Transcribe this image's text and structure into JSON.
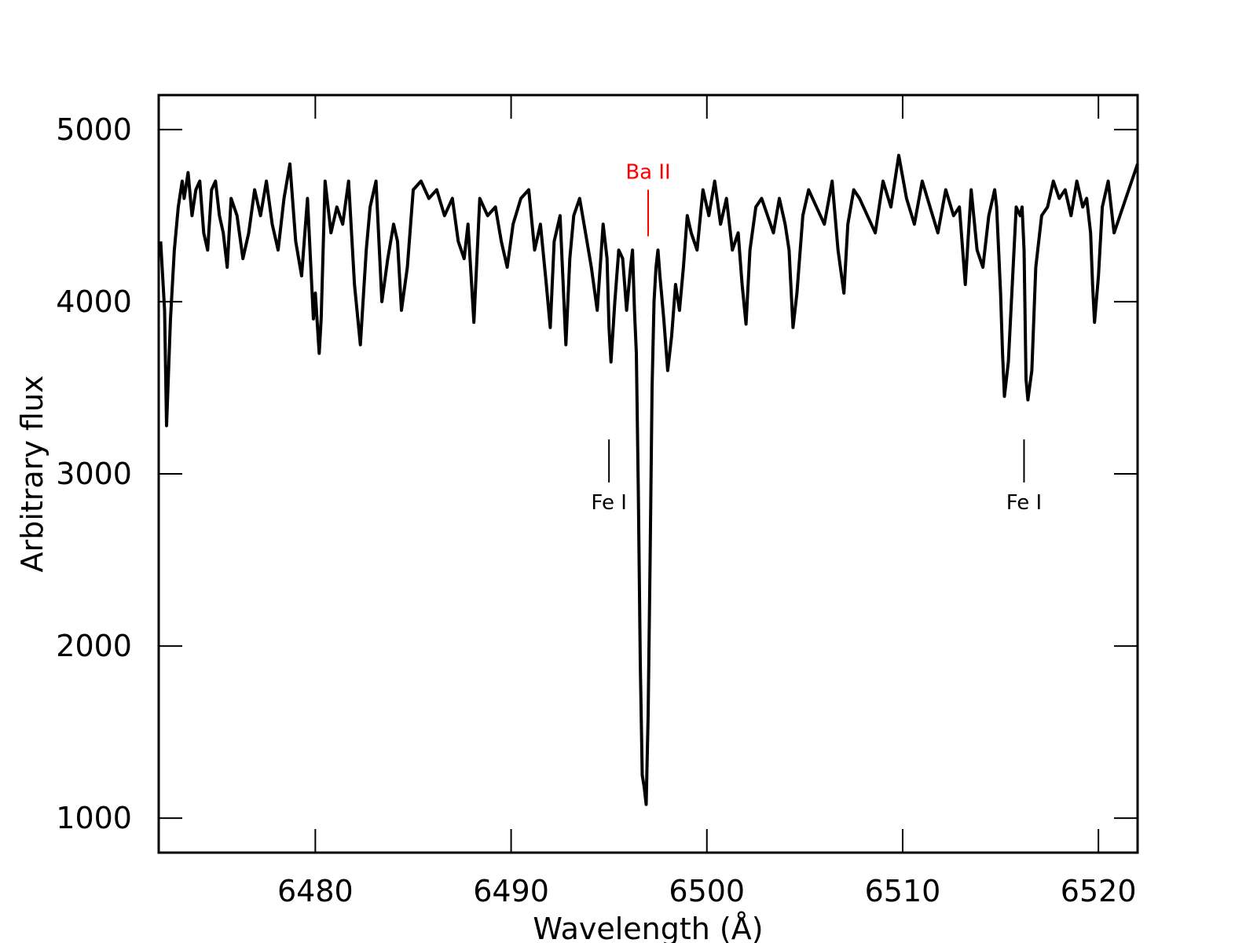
{
  "chart_data": {
    "type": "line",
    "title": "",
    "xlabel": "Wavelength (Å)",
    "ylabel": "Arbitrary flux",
    "xlim": [
      6472,
      6522
    ],
    "ylim": [
      800,
      5200
    ],
    "x_ticks": [
      6480,
      6490,
      6500,
      6510,
      6520
    ],
    "y_ticks": [
      1000,
      2000,
      3000,
      4000,
      5000
    ],
    "x_tick_labels": [
      "6480",
      "6490",
      "6500",
      "6510",
      "6520"
    ],
    "y_tick_labels": [
      "1000",
      "2000",
      "3000",
      "4000",
      "5000"
    ],
    "grid": false,
    "line_color": "#000000",
    "series": [
      {
        "x": [
          6472.1,
          6472.2,
          6472.3,
          6472.4,
          6472.6,
          6472.8,
          6473.0,
          6473.2,
          6473.3,
          6473.5,
          6473.7,
          6473.9,
          6474.1,
          6474.3,
          6474.5,
          6474.7,
          6474.9,
          6475.1,
          6475.3,
          6475.5,
          6475.7,
          6476.0,
          6476.3,
          6476.6,
          6476.9,
          6477.2,
          6477.5,
          6477.8,
          6478.1,
          6478.4,
          6478.7,
          6479.0,
          6479.3,
          6479.6,
          6479.9,
          6480.0,
          6480.2,
          6480.3,
          6480.5,
          6480.8,
          6481.1,
          6481.4,
          6481.7,
          6482.0,
          6482.3,
          6482.6,
          6482.8,
          6483.1,
          6483.4,
          6483.7,
          6484.0,
          6484.2,
          6484.4,
          6484.7,
          6485.0,
          6485.4,
          6485.8,
          6486.2,
          6486.6,
          6487.0,
          6487.3,
          6487.6,
          6487.8,
          6488.1,
          6488.4,
          6488.8,
          6489.2,
          6489.5,
          6489.8,
          6490.1,
          6490.5,
          6490.9,
          6491.2,
          6491.5,
          6491.8,
          6492.0,
          6492.2,
          6492.5,
          6492.8,
          6493.0,
          6493.2,
          6493.5,
          6493.8,
          6494.1,
          6494.4,
          6494.7,
          6494.9,
          6495.0,
          6495.1,
          6495.3,
          6495.5,
          6495.7,
          6495.9,
          6496.1,
          6496.2,
          6496.3,
          6496.4,
          6496.5,
          6496.6,
          6496.7,
          6496.8,
          6496.9,
          6497.0,
          6497.1,
          6497.2,
          6497.3,
          6497.4,
          6497.5,
          6497.6,
          6497.8,
          6498.0,
          6498.2,
          6498.4,
          6498.6,
          6498.8,
          6499.0,
          6499.2,
          6499.5,
          6499.8,
          6500.1,
          6500.4,
          6500.7,
          6501.0,
          6501.3,
          6501.6,
          6501.8,
          6502.0,
          6502.2,
          6502.5,
          6502.8,
          6503.1,
          6503.4,
          6503.7,
          6504.0,
          6504.2,
          6504.4,
          6504.6,
          6504.9,
          6505.2,
          6505.6,
          6506.0,
          6506.4,
          6506.7,
          6507.0,
          6507.2,
          6507.5,
          6507.8,
          6508.2,
          6508.6,
          6509.0,
          6509.4,
          6509.8,
          6510.2,
          6510.6,
          6511.0,
          6511.4,
          6511.8,
          6512.2,
          6512.6,
          6512.9,
          6513.2,
          6513.5,
          6513.8,
          6514.1,
          6514.4,
          6514.7,
          6514.8,
          6514.9,
          6515.0,
          6515.1,
          6515.2,
          6515.4,
          6515.6,
          6515.8,
          6516.0,
          6516.1,
          6516.2,
          6516.3,
          6516.4,
          6516.6,
          6516.8,
          6517.1,
          6517.4,
          6517.7,
          6518.0,
          6518.3,
          6518.6,
          6518.9,
          6519.2,
          6519.4,
          6519.6,
          6519.7,
          6519.8,
          6520.0,
          6520.2,
          6520.5,
          6520.8,
          6521.1,
          6521.4,
          6521.7,
          6522.0
        ],
        "y": [
          4350,
          4150,
          3950,
          3280,
          3900,
          4300,
          4550,
          4700,
          4600,
          4750,
          4500,
          4650,
          4700,
          4400,
          4300,
          4650,
          4700,
          4500,
          4400,
          4200,
          4600,
          4500,
          4250,
          4400,
          4650,
          4500,
          4700,
          4450,
          4300,
          4600,
          4800,
          4350,
          4150,
          4600,
          3900,
          4050,
          3700,
          3900,
          4700,
          4400,
          4550,
          4450,
          4700,
          4100,
          3750,
          4300,
          4550,
          4700,
          4000,
          4250,
          4450,
          4350,
          3950,
          4200,
          4650,
          4700,
          4600,
          4650,
          4500,
          4600,
          4350,
          4250,
          4450,
          3880,
          4600,
          4500,
          4550,
          4350,
          4200,
          4450,
          4600,
          4650,
          4300,
          4450,
          4100,
          3850,
          4350,
          4500,
          3750,
          4250,
          4500,
          4600,
          4400,
          4200,
          3950,
          4450,
          4250,
          3850,
          3650,
          4000,
          4300,
          4250,
          3950,
          4200,
          4300,
          3950,
          3700,
          2900,
          1900,
          1250,
          1180,
          1080,
          1600,
          2500,
          3500,
          4000,
          4200,
          4300,
          4150,
          3900,
          3600,
          3800,
          4100,
          3950,
          4200,
          4500,
          4400,
          4300,
          4650,
          4500,
          4700,
          4450,
          4600,
          4300,
          4400,
          4100,
          3870,
          4300,
          4550,
          4600,
          4500,
          4400,
          4600,
          4450,
          4300,
          3850,
          4050,
          4500,
          4650,
          4550,
          4450,
          4700,
          4300,
          4050,
          4450,
          4650,
          4600,
          4500,
          4400,
          4700,
          4550,
          4850,
          4600,
          4450,
          4700,
          4550,
          4400,
          4650,
          4500,
          4550,
          4100,
          4650,
          4300,
          4200,
          4500,
          4650,
          4550,
          4300,
          4050,
          3700,
          3450,
          3650,
          4100,
          4550,
          4500,
          4550,
          4300,
          3550,
          3430,
          3600,
          4200,
          4500,
          4550,
          4700,
          4600,
          4650,
          4500,
          4700,
          4550,
          4600,
          4400,
          4100,
          3880,
          4150,
          4550,
          4700,
          4400,
          4500,
          4600,
          4700,
          4800
        ]
      }
    ],
    "annotations": [
      {
        "label": "Fe I",
        "x": 6495,
        "color": "#000000",
        "marker_y": [
          2950,
          3200
        ]
      },
      {
        "label": "Ba II",
        "x": 6497,
        "color": "#ff0000",
        "marker_y": [
          4380,
          4650
        ]
      },
      {
        "label": "Fe I",
        "x": 6516.2,
        "color": "#000000",
        "marker_y": [
          2950,
          3200
        ]
      }
    ]
  }
}
